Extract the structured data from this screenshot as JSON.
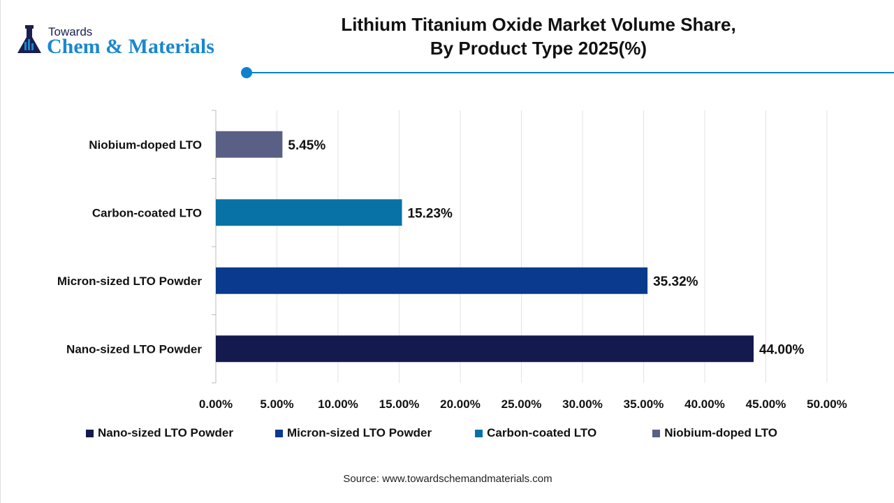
{
  "logo": {
    "line1": "Towards",
    "line2": "Chem & Materials"
  },
  "title_line1": "Lithium Titanium Oxide Market Volume Share,",
  "title_line2": "By Product Type 2025(%)",
  "source": "Source: www.towardschemandmaterials.com",
  "chart_data": {
    "type": "bar",
    "orientation": "horizontal",
    "title": "Lithium Titanium Oxide Market Volume Share, By Product Type 2025(%)",
    "categories": [
      "Niobium-doped LTO",
      "Carbon-coated LTO",
      "Micron-sized LTO Powder",
      "Nano-sized LTO Powder"
    ],
    "values": [
      5.45,
      15.23,
      35.32,
      44.0
    ],
    "data_labels": [
      "5.45%",
      "15.23%",
      "35.32%",
      "44.00%"
    ],
    "colors": [
      "#5a5f86",
      "#0872a6",
      "#0a3a8e",
      "#141a4e"
    ],
    "xlim": [
      0,
      50
    ],
    "xticks": [
      "0.00%",
      "5.00%",
      "10.00%",
      "15.00%",
      "20.00%",
      "25.00%",
      "30.00%",
      "35.00%",
      "40.00%",
      "45.00%",
      "50.00%"
    ],
    "grid": "vertical",
    "legend_position": "bottom",
    "legend": [
      {
        "name": "Nano-sized LTO Powder",
        "color": "#141a4e"
      },
      {
        "name": "Micron-sized LTO Powder",
        "color": "#0a3a8e"
      },
      {
        "name": "Carbon-coated LTO",
        "color": "#0872a6"
      },
      {
        "name": "Niobium-doped LTO",
        "color": "#5a5f86"
      }
    ]
  }
}
